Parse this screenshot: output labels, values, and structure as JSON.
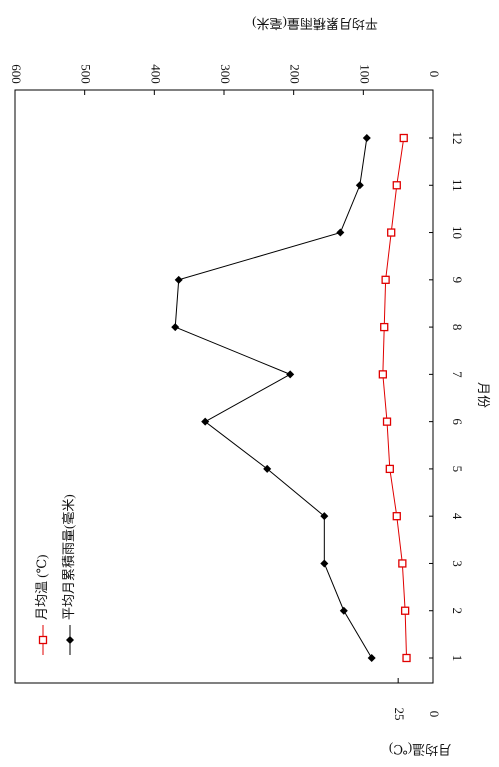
{
  "chart_data": {
    "type": "line",
    "x_label": "月份",
    "y_label": "月均温(℃)",
    "y2_label": "平均月累積雨量(毫米)",
    "categories": [
      "1",
      "2",
      "3",
      "4",
      "5",
      "6",
      "7",
      "8",
      "9",
      "10",
      "11",
      "12"
    ],
    "series": [
      {
        "name": "月均温 (℃)",
        "color": "#e00000",
        "marker": "square-open",
        "axis": "y",
        "values": [
          19,
          20,
          22,
          26,
          31,
          33,
          36,
          35,
          34,
          30,
          26,
          21
        ]
      },
      {
        "name": "平均月累積雨量(毫米)",
        "color": "#000000",
        "marker": "diamond",
        "axis": "y2",
        "values": [
          88,
          128,
          156,
          156,
          238,
          327,
          205,
          370,
          365,
          133,
          105,
          95
        ]
      }
    ],
    "ylim": [
      0,
      300
    ],
    "yticks": [
      0,
      25
    ],
    "y2lim": [
      0,
      600
    ],
    "y2ticks": [
      0,
      100,
      200,
      300,
      400,
      500,
      600
    ]
  }
}
